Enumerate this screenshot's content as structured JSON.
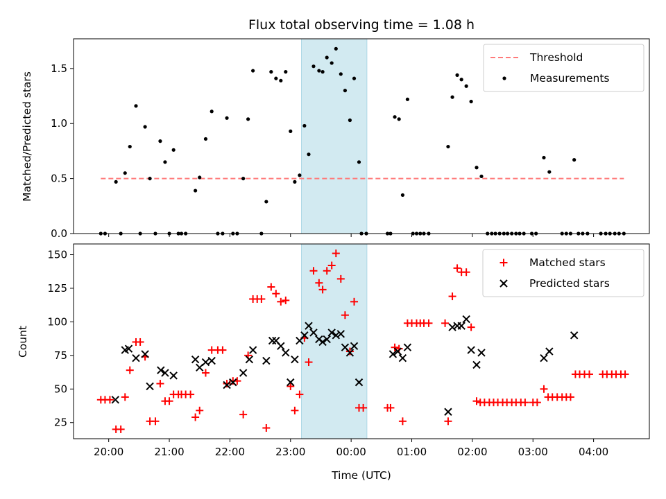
{
  "title": "Flux total observing time = 1.08 h",
  "colors": {
    "threshold": "#ff7a7a",
    "measurement": "#000000",
    "matched": "#ff0000",
    "predicted": "#000000",
    "shade": "#add8e6"
  },
  "x_ticks": [
    {
      "label": "20:00",
      "h": 0
    },
    {
      "label": "21:00",
      "h": 1
    },
    {
      "label": "22:00",
      "h": 2
    },
    {
      "label": "23:00",
      "h": 3
    },
    {
      "label": "00:00",
      "h": 4
    },
    {
      "label": "01:00",
      "h": 5
    },
    {
      "label": "02:00",
      "h": 6
    },
    {
      "label": "03:00",
      "h": 7
    },
    {
      "label": "04:00",
      "h": 8
    }
  ],
  "xlabel": "Time (UTC)",
  "chart_data": [
    {
      "type": "scatter",
      "ylabel": "Matched/Predicted stars",
      "xlim_hours_since_20": [
        -0.58,
        8.92
      ],
      "ylim": [
        0,
        1.77
      ],
      "yticks": [
        0.0,
        0.5,
        1.0,
        1.5
      ],
      "ytick_labels": [
        "0.0",
        "0.5",
        "1.0",
        "1.5"
      ],
      "shaded_span": [
        3.18,
        4.26
      ],
      "legend": {
        "position": "upper right",
        "entries": [
          "Threshold",
          "Measurements"
        ]
      },
      "threshold": {
        "name": "Threshold",
        "y": 0.5,
        "x_range": [
          -0.13,
          8.5
        ]
      },
      "measurements": {
        "name": "Measurements",
        "points": [
          [
            -0.13,
            0
          ],
          [
            -0.06,
            0
          ],
          [
            0.12,
            0.47
          ],
          [
            0.2,
            0
          ],
          [
            0.27,
            0.55
          ],
          [
            0.35,
            0.79
          ],
          [
            0.45,
            1.16
          ],
          [
            0.52,
            0
          ],
          [
            0.6,
            0.97
          ],
          [
            0.68,
            0.5
          ],
          [
            0.77,
            0
          ],
          [
            0.85,
            0.84
          ],
          [
            0.93,
            0.65
          ],
          [
            1.0,
            0
          ],
          [
            1.07,
            0.76
          ],
          [
            1.15,
            0
          ],
          [
            1.2,
            0
          ],
          [
            1.27,
            0
          ],
          [
            1.43,
            0.39
          ],
          [
            1.5,
            0.51
          ],
          [
            1.6,
            0.86
          ],
          [
            1.7,
            1.11
          ],
          [
            1.8,
            0
          ],
          [
            1.88,
            0
          ],
          [
            1.95,
            1.05
          ],
          [
            2.05,
            0
          ],
          [
            2.12,
            0
          ],
          [
            2.22,
            0.5
          ],
          [
            2.3,
            1.04
          ],
          [
            2.38,
            1.48
          ],
          [
            2.52,
            0
          ],
          [
            2.6,
            0.29
          ],
          [
            2.68,
            1.47
          ],
          [
            2.76,
            1.41
          ],
          [
            2.84,
            1.39
          ],
          [
            2.92,
            1.47
          ],
          [
            3.0,
            0.93
          ],
          [
            3.07,
            0.47
          ],
          [
            3.15,
            0.53
          ],
          [
            3.23,
            0.98
          ],
          [
            3.3,
            0.72
          ],
          [
            3.38,
            1.52
          ],
          [
            3.47,
            1.48
          ],
          [
            3.53,
            1.47
          ],
          [
            3.6,
            1.6
          ],
          [
            3.68,
            1.55
          ],
          [
            3.75,
            1.68
          ],
          [
            3.83,
            1.45
          ],
          [
            3.9,
            1.3
          ],
          [
            3.98,
            1.03
          ],
          [
            4.05,
            1.41
          ],
          [
            4.13,
            0.65
          ],
          [
            4.17,
            0
          ],
          [
            4.25,
            0
          ],
          [
            4.6,
            0
          ],
          [
            4.65,
            0
          ],
          [
            4.72,
            1.06
          ],
          [
            4.79,
            1.04
          ],
          [
            4.85,
            0.35
          ],
          [
            4.93,
            1.22
          ],
          [
            5.02,
            0
          ],
          [
            5.08,
            0
          ],
          [
            5.14,
            0
          ],
          [
            5.2,
            0
          ],
          [
            5.28,
            0
          ],
          [
            5.6,
            0.79
          ],
          [
            5.67,
            1.24
          ],
          [
            5.75,
            1.44
          ],
          [
            5.82,
            1.4
          ],
          [
            5.9,
            1.34
          ],
          [
            5.98,
            1.2
          ],
          [
            6.07,
            0.6
          ],
          [
            6.15,
            0.52
          ],
          [
            6.25,
            0
          ],
          [
            6.32,
            0
          ],
          [
            6.38,
            0
          ],
          [
            6.45,
            0
          ],
          [
            6.52,
            0
          ],
          [
            6.58,
            0
          ],
          [
            6.65,
            0
          ],
          [
            6.72,
            0
          ],
          [
            6.78,
            0
          ],
          [
            6.85,
            0
          ],
          [
            6.98,
            0
          ],
          [
            7.05,
            0
          ],
          [
            7.18,
            0.69
          ],
          [
            7.27,
            0.56
          ],
          [
            7.48,
            0
          ],
          [
            7.55,
            0
          ],
          [
            7.62,
            0
          ],
          [
            7.68,
            0.67
          ],
          [
            7.75,
            0
          ],
          [
            7.82,
            0
          ],
          [
            7.9,
            0
          ],
          [
            8.12,
            0
          ],
          [
            8.2,
            0
          ],
          [
            8.27,
            0
          ],
          [
            8.35,
            0
          ],
          [
            8.42,
            0
          ],
          [
            8.5,
            0
          ]
        ]
      }
    },
    {
      "type": "scatter",
      "ylabel": "Count",
      "xlim_hours_since_20": [
        -0.58,
        8.92
      ],
      "ylim": [
        13,
        158
      ],
      "yticks": [
        25,
        50,
        75,
        100,
        125,
        150
      ],
      "ytick_labels": [
        "25",
        "50",
        "75",
        "100",
        "125",
        "150"
      ],
      "shaded_span": [
        3.18,
        4.26
      ],
      "legend": {
        "position": "upper right",
        "entries": [
          "Matched stars",
          "Predicted stars"
        ]
      },
      "series": [
        {
          "name": "Matched stars",
          "marker": "plus",
          "points": [
            [
              -0.13,
              42
            ],
            [
              -0.06,
              42
            ],
            [
              0.02,
              42
            ],
            [
              0.12,
              20
            ],
            [
              0.2,
              20
            ],
            [
              0.27,
              44
            ],
            [
              0.35,
              64
            ],
            [
              0.45,
              85
            ],
            [
              0.52,
              85
            ],
            [
              0.6,
              74
            ],
            [
              0.68,
              26
            ],
            [
              0.77,
              26
            ],
            [
              0.85,
              54
            ],
            [
              0.93,
              41
            ],
            [
              1.0,
              41
            ],
            [
              1.07,
              46
            ],
            [
              1.15,
              46
            ],
            [
              1.2,
              46
            ],
            [
              1.27,
              46
            ],
            [
              1.35,
              46
            ],
            [
              1.43,
              29
            ],
            [
              1.5,
              34
            ],
            [
              1.6,
              62
            ],
            [
              1.7,
              79
            ],
            [
              1.8,
              79
            ],
            [
              1.88,
              79
            ],
            [
              1.95,
              54
            ],
            [
              2.05,
              56
            ],
            [
              2.12,
              56
            ],
            [
              2.22,
              31
            ],
            [
              2.3,
              75
            ],
            [
              2.38,
              117
            ],
            [
              2.45,
              117
            ],
            [
              2.52,
              117
            ],
            [
              2.6,
              21
            ],
            [
              2.68,
              126
            ],
            [
              2.76,
              121
            ],
            [
              2.84,
              115
            ],
            [
              2.92,
              116
            ],
            [
              3.0,
              52
            ],
            [
              3.07,
              34
            ],
            [
              3.15,
              46
            ],
            [
              3.23,
              88
            ],
            [
              3.3,
              70
            ],
            [
              3.38,
              138
            ],
            [
              3.47,
              129
            ],
            [
              3.53,
              124
            ],
            [
              3.6,
              138
            ],
            [
              3.68,
              142
            ],
            [
              3.75,
              151
            ],
            [
              3.83,
              132
            ],
            [
              3.9,
              105
            ],
            [
              3.98,
              78
            ],
            [
              4.05,
              115
            ],
            [
              4.13,
              36
            ],
            [
              4.2,
              36
            ],
            [
              4.6,
              36
            ],
            [
              4.65,
              36
            ],
            [
              4.72,
              81
            ],
            [
              4.79,
              80
            ],
            [
              4.85,
              26
            ],
            [
              4.93,
              99
            ],
            [
              5.0,
              99
            ],
            [
              5.08,
              99
            ],
            [
              5.14,
              99
            ],
            [
              5.2,
              99
            ],
            [
              5.28,
              99
            ],
            [
              5.55,
              99
            ],
            [
              5.6,
              26
            ],
            [
              5.67,
              119
            ],
            [
              5.75,
              140
            ],
            [
              5.82,
              137
            ],
            [
              5.9,
              137
            ],
            [
              5.98,
              96
            ],
            [
              6.07,
              41
            ],
            [
              6.13,
              40
            ],
            [
              6.2,
              40
            ],
            [
              6.28,
              40
            ],
            [
              6.35,
              40
            ],
            [
              6.42,
              40
            ],
            [
              6.5,
              40
            ],
            [
              6.57,
              40
            ],
            [
              6.65,
              40
            ],
            [
              6.72,
              40
            ],
            [
              6.8,
              40
            ],
            [
              6.87,
              40
            ],
            [
              7.0,
              40
            ],
            [
              7.07,
              40
            ],
            [
              7.18,
              50
            ],
            [
              7.25,
              44
            ],
            [
              7.32,
              44
            ],
            [
              7.4,
              44
            ],
            [
              7.48,
              44
            ],
            [
              7.55,
              44
            ],
            [
              7.62,
              44
            ],
            [
              7.7,
              61
            ],
            [
              7.77,
              61
            ],
            [
              7.85,
              61
            ],
            [
              7.93,
              61
            ],
            [
              8.15,
              61
            ],
            [
              8.22,
              61
            ],
            [
              8.3,
              61
            ],
            [
              8.37,
              61
            ],
            [
              8.45,
              61
            ],
            [
              8.52,
              61
            ]
          ]
        },
        {
          "name": "Predicted stars",
          "marker": "x",
          "points": [
            [
              0.11,
              42
            ],
            [
              0.27,
              79
            ],
            [
              0.33,
              80
            ],
            [
              0.45,
              73
            ],
            [
              0.6,
              76
            ],
            [
              0.68,
              52
            ],
            [
              0.86,
              64
            ],
            [
              0.93,
              62
            ],
            [
              1.07,
              60
            ],
            [
              1.43,
              72
            ],
            [
              1.5,
              66
            ],
            [
              1.6,
              70
            ],
            [
              1.7,
              71
            ],
            [
              1.95,
              53
            ],
            [
              2.05,
              55
            ],
            [
              2.22,
              62
            ],
            [
              2.32,
              72
            ],
            [
              2.38,
              79
            ],
            [
              2.6,
              71
            ],
            [
              2.7,
              86
            ],
            [
              2.76,
              86
            ],
            [
              2.84,
              82
            ],
            [
              2.92,
              77
            ],
            [
              3.0,
              55
            ],
            [
              3.07,
              72
            ],
            [
              3.15,
              86
            ],
            [
              3.23,
              90
            ],
            [
              3.3,
              97
            ],
            [
              3.38,
              92
            ],
            [
              3.47,
              87
            ],
            [
              3.53,
              85
            ],
            [
              3.6,
              87
            ],
            [
              3.68,
              92
            ],
            [
              3.75,
              90
            ],
            [
              3.83,
              91
            ],
            [
              3.9,
              81
            ],
            [
              3.98,
              77
            ],
            [
              4.05,
              82
            ],
            [
              4.13,
              55
            ],
            [
              4.69,
              76
            ],
            [
              4.77,
              78
            ],
            [
              4.85,
              73
            ],
            [
              4.93,
              81
            ],
            [
              5.6,
              33
            ],
            [
              5.67,
              96
            ],
            [
              5.75,
              97
            ],
            [
              5.82,
              97
            ],
            [
              5.9,
              102
            ],
            [
              5.98,
              79
            ],
            [
              6.07,
              68
            ],
            [
              6.15,
              77
            ],
            [
              7.18,
              73
            ],
            [
              7.27,
              78
            ],
            [
              7.68,
              90
            ]
          ]
        }
      ]
    }
  ]
}
